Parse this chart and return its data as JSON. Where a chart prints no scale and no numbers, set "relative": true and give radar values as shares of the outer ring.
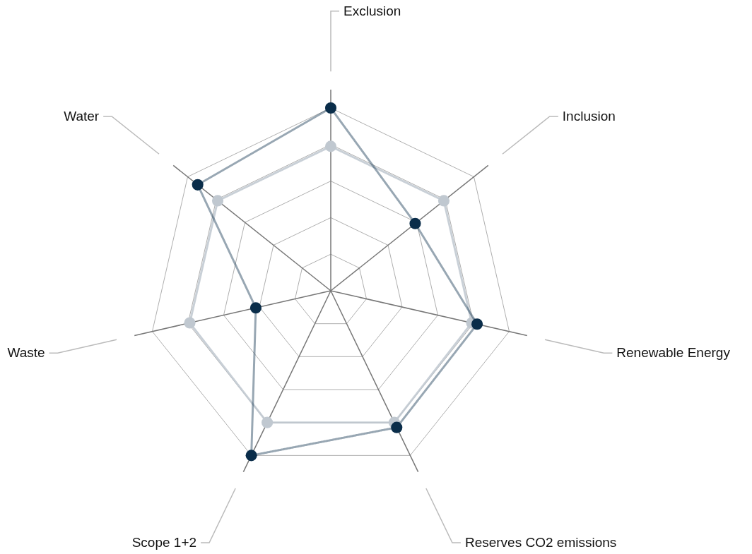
{
  "chart_data": {
    "type": "radar",
    "relative": true,
    "grid": true,
    "marker": "circle",
    "line_style": "solid",
    "categories": [
      "Exclusion",
      "Inclusion",
      "Renewable Energy",
      "Reserves CO2 emissions",
      "Scope 1+2",
      "Waste",
      "Water"
    ],
    "series": [
      {
        "color": "#c0c8d0",
        "values": [
          0.79,
          0.79,
          0.79,
          0.8,
          0.8,
          0.79,
          0.79
        ]
      },
      {
        "color": "#0a2d4a",
        "values": [
          1.0,
          0.59,
          0.82,
          0.83,
          1.0,
          0.42,
          0.93
        ]
      }
    ]
  }
}
